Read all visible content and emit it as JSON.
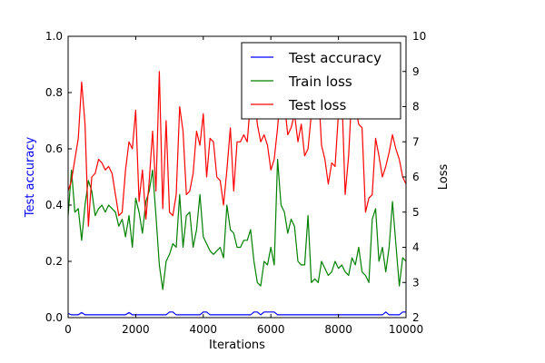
{
  "chart_data": {
    "type": "line",
    "xlabel": "Iterations",
    "ylabel_left": "Test accuracy",
    "ylabel_right": "Loss",
    "xlim": [
      0,
      10000
    ],
    "ylim_left": [
      0.0,
      1.0
    ],
    "ylim_right": [
      2,
      10
    ],
    "x_ticks": [
      "0",
      "2000",
      "4000",
      "6000",
      "8000",
      "10000"
    ],
    "y_left_ticks": [
      "0.0",
      "0.2",
      "0.4",
      "0.6",
      "0.8",
      "1.0"
    ],
    "y_right_ticks": [
      "2",
      "3",
      "4",
      "5",
      "6",
      "7",
      "8",
      "9",
      "10"
    ],
    "legend_position": "top-right",
    "colors": {
      "accuracy": "#0000ff",
      "train": "#008000",
      "test": "#ff0000",
      "left_axis_label": "#0000ff"
    },
    "x": [
      0,
      100,
      200,
      300,
      400,
      500,
      600,
      700,
      800,
      900,
      1000,
      1100,
      1200,
      1300,
      1400,
      1500,
      1600,
      1700,
      1800,
      1900,
      2000,
      2100,
      2200,
      2300,
      2400,
      2500,
      2600,
      2700,
      2800,
      2900,
      3000,
      3100,
      3200,
      3300,
      3400,
      3500,
      3600,
      3700,
      3800,
      3900,
      4000,
      4100,
      4200,
      4300,
      4400,
      4500,
      4600,
      4700,
      4800,
      4900,
      5000,
      5100,
      5200,
      5300,
      5400,
      5500,
      5600,
      5700,
      5800,
      5900,
      6000,
      6100,
      6200,
      6300,
      6400,
      6500,
      6600,
      6700,
      6800,
      6900,
      7000,
      7100,
      7200,
      7300,
      7400,
      7500,
      7600,
      7700,
      7800,
      7900,
      8000,
      8100,
      8200,
      8300,
      8400,
      8500,
      8600,
      8700,
      8800,
      8900,
      9000,
      9100,
      9200,
      9300,
      9400,
      9500,
      9600,
      9700,
      9800,
      9900,
      10000
    ],
    "series": [
      {
        "name": "Test accuracy",
        "axis": "left",
        "values": [
          0.015,
          0.01,
          0.01,
          0.01,
          0.018,
          0.01,
          0.01,
          0.01,
          0.01,
          0.01,
          0.01,
          0.01,
          0.01,
          0.01,
          0.01,
          0.01,
          0.01,
          0.01,
          0.018,
          0.01,
          0.01,
          0.01,
          0.01,
          0.01,
          0.01,
          0.01,
          0.01,
          0.01,
          0.01,
          0.01,
          0.02,
          0.02,
          0.01,
          0.01,
          0.01,
          0.01,
          0.01,
          0.01,
          0.01,
          0.01,
          0.02,
          0.02,
          0.01,
          0.01,
          0.01,
          0.01,
          0.01,
          0.01,
          0.01,
          0.01,
          0.01,
          0.01,
          0.01,
          0.01,
          0.01,
          0.02,
          0.02,
          0.01,
          0.02,
          0.02,
          0.02,
          0.02,
          0.01,
          0.01,
          0.01,
          0.01,
          0.01,
          0.01,
          0.01,
          0.01,
          0.01,
          0.01,
          0.01,
          0.01,
          0.01,
          0.01,
          0.01,
          0.01,
          0.01,
          0.01,
          0.01,
          0.01,
          0.01,
          0.01,
          0.01,
          0.01,
          0.01,
          0.01,
          0.01,
          0.01,
          0.01,
          0.01,
          0.01,
          0.01,
          0.02,
          0.01,
          0.01,
          0.01,
          0.01,
          0.02,
          0.02
        ]
      },
      {
        "name": "Train loss",
        "axis": "right",
        "values": [
          4.9,
          6.2,
          5.0,
          5.1,
          4.2,
          5.2,
          5.9,
          5.6,
          4.9,
          5.1,
          5.2,
          5.0,
          5.2,
          5.1,
          5.0,
          4.6,
          4.8,
          4.3,
          4.9,
          4.0,
          5.4,
          5.0,
          4.4,
          5.3,
          5.6,
          6.2,
          4.9,
          3.5,
          2.8,
          3.6,
          3.8,
          4.1,
          4.0,
          5.5,
          4.0,
          4.9,
          5.0,
          4.0,
          4.5,
          5.5,
          4.3,
          4.1,
          3.9,
          3.8,
          3.9,
          4.0,
          3.7,
          5.2,
          4.5,
          4.4,
          4.0,
          4.0,
          4.2,
          4.2,
          4.5,
          3.6,
          3.0,
          2.9,
          3.6,
          3.5,
          4.0,
          3.5,
          6.5,
          5.2,
          5.0,
          4.4,
          4.8,
          4.6,
          3.6,
          3.5,
          3.5,
          4.9,
          3.0,
          3.1,
          3.0,
          3.6,
          3.4,
          3.2,
          3.3,
          3.6,
          3.4,
          3.5,
          3.3,
          3.2,
          3.7,
          3.5,
          4.0,
          3.3,
          3.2,
          3.0,
          4.8,
          5.1,
          3.6,
          4.0,
          3.3,
          4.0,
          5.3,
          4.1,
          2.9,
          3.7,
          3.6
        ]
      },
      {
        "name": "Test loss",
        "axis": "right",
        "values": [
          5.6,
          5.9,
          6.5,
          7.1,
          8.7,
          7.5,
          4.6,
          6.0,
          6.1,
          6.5,
          6.4,
          6.2,
          6.3,
          6.1,
          5.5,
          4.9,
          5.0,
          6.2,
          7.0,
          6.8,
          7.9,
          5.3,
          6.2,
          4.8,
          5.9,
          7.3,
          5.6,
          9.0,
          5.1,
          7.6,
          5.0,
          4.9,
          5.5,
          8.0,
          7.3,
          5.5,
          5.6,
          6.1,
          7.3,
          6.9,
          7.8,
          6.0,
          7.1,
          7.0,
          6.0,
          5.9,
          5.2,
          6.2,
          7.4,
          5.6,
          7.0,
          7.0,
          7.2,
          7.0,
          8.2,
          8.6,
          7.5,
          7.0,
          7.2,
          6.9,
          6.2,
          6.5,
          7.4,
          8.6,
          8.1,
          7.2,
          7.4,
          7.8,
          7.0,
          7.5,
          6.6,
          6.8,
          7.8,
          8.0,
          8.6,
          6.9,
          6.5,
          5.8,
          6.4,
          6.3,
          7.8,
          8.4,
          5.5,
          6.6,
          8.5,
          8.0,
          7.5,
          7.4,
          5.0,
          5.4,
          5.5,
          7.1,
          6.6,
          6.0,
          6.3,
          6.7,
          7.2,
          6.8,
          6.5,
          6.0,
          5.8
        ]
      }
    ]
  }
}
